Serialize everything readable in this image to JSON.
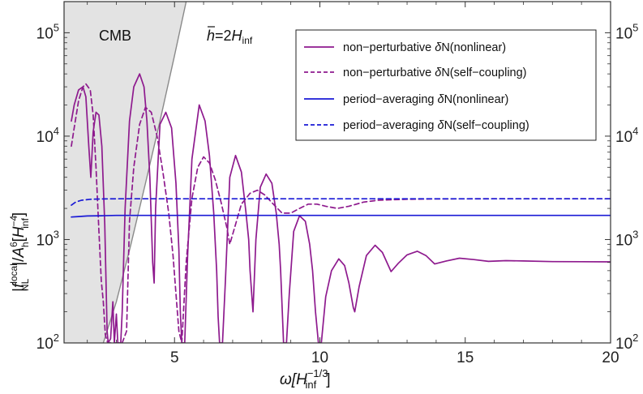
{
  "chart_data": {
    "type": "line",
    "title": "",
    "xlabel": "ω[H_inf^(-1/3)]",
    "ylabel": "|f_NL^local|/A_h^6[H_inf^(-4)]",
    "xlabel_parts": {
      "sym": "ω[",
      "base": "H",
      "base_sub": "inf",
      "sup": "−1/3",
      "close": "]"
    },
    "ylabel_parts": {
      "pre": "|",
      "f": "f",
      "f_sup": "local",
      "f_sub": "NL",
      "mid": "|/",
      "A": "A",
      "A_sup": "6",
      "A_sub": "h",
      "open": "[",
      "H": "H",
      "H_sup": "−4",
      "H_sub": "inf",
      "close": "]"
    },
    "xlim": [
      1.2,
      20
    ],
    "ylim": [
      100,
      200000
    ],
    "yscale": "log",
    "xticks": [
      5,
      10,
      15,
      20
    ],
    "xtick_labels": [
      "5",
      "10",
      "15",
      "20"
    ],
    "yticks": [
      100,
      1000,
      10000,
      100000
    ],
    "ytick_labels": [
      {
        "base": "10",
        "exp": "2"
      },
      {
        "base": "10",
        "exp": "3"
      },
      {
        "base": "10",
        "exp": "4"
      },
      {
        "base": "10",
        "exp": "5"
      }
    ],
    "grid": false,
    "legend_position": "top-right",
    "annotations": {
      "region_label": "CMB",
      "hbar": {
        "sym": "h",
        "eq": "=2",
        "H": "H",
        "sub": "inf"
      }
    },
    "cmb_region": {
      "boundary": [
        [
          1.2,
          100
        ],
        [
          2.55,
          100
        ],
        [
          3.0,
          250
        ],
        [
          3.5,
          900
        ],
        [
          4.0,
          3500
        ],
        [
          4.5,
          14000
        ],
        [
          5.0,
          60000
        ],
        [
          5.4,
          200000
        ],
        [
          1.2,
          200000
        ]
      ]
    },
    "series": [
      {
        "name": "non−perturbative δN(nonlinear)",
        "name_parts": {
          "pre": "non−perturbative ",
          "delta": "δ",
          "post": "N(nonlinear)"
        },
        "style": "solid",
        "color": "#8e1a8e",
        "points": [
          [
            1.45,
            14000
          ],
          [
            1.55,
            20000
          ],
          [
            1.7,
            28000
          ],
          [
            1.85,
            30000
          ],
          [
            1.95,
            24000
          ],
          [
            2.05,
            8000
          ],
          [
            2.12,
            4000
          ],
          [
            2.2,
            11000
          ],
          [
            2.3,
            17000
          ],
          [
            2.4,
            16000
          ],
          [
            2.5,
            8000
          ],
          [
            2.6,
            1400
          ],
          [
            2.68,
            130
          ],
          [
            2.72,
            100
          ],
          [
            2.8,
            110
          ],
          [
            2.88,
            250
          ],
          [
            2.93,
            100
          ],
          [
            3.0,
            190
          ],
          [
            3.05,
            100
          ],
          [
            3.15,
            100
          ],
          [
            3.2,
            200
          ],
          [
            3.3,
            2000
          ],
          [
            3.45,
            14000
          ],
          [
            3.6,
            30000
          ],
          [
            3.8,
            40000
          ],
          [
            3.95,
            30000
          ],
          [
            4.05,
            14000
          ],
          [
            4.15,
            4000
          ],
          [
            4.25,
            600
          ],
          [
            4.3,
            380
          ],
          [
            4.35,
            2000
          ],
          [
            4.5,
            13000
          ],
          [
            4.7,
            17000
          ],
          [
            4.9,
            12000
          ],
          [
            5.05,
            3500
          ],
          [
            5.15,
            800
          ],
          [
            5.2,
            200
          ],
          [
            5.25,
            100
          ],
          [
            5.35,
            100
          ],
          [
            5.45,
            700
          ],
          [
            5.6,
            6000
          ],
          [
            5.85,
            20000
          ],
          [
            6.05,
            14000
          ],
          [
            6.2,
            6500
          ],
          [
            6.35,
            1800
          ],
          [
            6.45,
            500
          ],
          [
            6.5,
            180
          ],
          [
            6.55,
            100
          ],
          [
            6.65,
            100
          ],
          [
            6.75,
            400
          ],
          [
            6.9,
            4000
          ],
          [
            7.1,
            6500
          ],
          [
            7.3,
            4500
          ],
          [
            7.45,
            1900
          ],
          [
            7.55,
            1000
          ],
          [
            7.6,
            500
          ],
          [
            7.7,
            200
          ],
          [
            7.8,
            1000
          ],
          [
            7.95,
            3200
          ],
          [
            8.15,
            4300
          ],
          [
            8.35,
            3500
          ],
          [
            8.5,
            1800
          ],
          [
            8.6,
            900
          ],
          [
            8.65,
            500
          ],
          [
            8.75,
            100
          ],
          [
            8.85,
            100
          ],
          [
            8.95,
            300
          ],
          [
            9.1,
            1200
          ],
          [
            9.3,
            1700
          ],
          [
            9.5,
            1500
          ],
          [
            9.65,
            900
          ],
          [
            9.75,
            500
          ],
          [
            9.85,
            200
          ],
          [
            9.95,
            100
          ],
          [
            10.05,
            100
          ],
          [
            10.2,
            280
          ],
          [
            10.4,
            500
          ],
          [
            10.65,
            650
          ],
          [
            10.85,
            560
          ],
          [
            11.0,
            380
          ],
          [
            11.15,
            220
          ],
          [
            11.2,
            200
          ],
          [
            11.35,
            350
          ],
          [
            11.6,
            700
          ],
          [
            11.9,
            880
          ],
          [
            12.15,
            750
          ],
          [
            12.45,
            490
          ],
          [
            12.7,
            590
          ],
          [
            13.0,
            710
          ],
          [
            13.35,
            770
          ],
          [
            13.65,
            700
          ],
          [
            13.95,
            580
          ],
          [
            14.35,
            620
          ],
          [
            14.8,
            660
          ],
          [
            15.3,
            640
          ],
          [
            15.8,
            615
          ],
          [
            16.4,
            625
          ],
          [
            17.0,
            620
          ],
          [
            18.0,
            612
          ],
          [
            19.0,
            610
          ],
          [
            20.0,
            608
          ]
        ]
      },
      {
        "name": "non−perturbative δN(self−coupling)",
        "name_parts": {
          "pre": "non−perturbative ",
          "delta": "δ",
          "post": "N(self−coupling)"
        },
        "style": "dashed",
        "color": "#8e1a8e",
        "points": [
          [
            1.45,
            8000
          ],
          [
            1.55,
            12000
          ],
          [
            1.7,
            22000
          ],
          [
            1.85,
            30000
          ],
          [
            1.95,
            32000
          ],
          [
            2.1,
            28000
          ],
          [
            2.2,
            16000
          ],
          [
            2.3,
            5000
          ],
          [
            2.4,
            1200
          ],
          [
            2.48,
            400
          ],
          [
            2.55,
            250
          ],
          [
            2.62,
            120
          ],
          [
            2.7,
            100
          ],
          [
            2.8,
            100
          ],
          [
            2.95,
            100
          ],
          [
            3.05,
            100
          ],
          [
            3.2,
            100
          ],
          [
            3.35,
            130
          ],
          [
            3.45,
            1500
          ],
          [
            3.6,
            5000
          ],
          [
            3.8,
            13000
          ],
          [
            4.0,
            19000
          ],
          [
            4.2,
            17000
          ],
          [
            4.4,
            10000
          ],
          [
            4.6,
            4500
          ],
          [
            4.8,
            1800
          ],
          [
            4.95,
            700
          ],
          [
            5.05,
            300
          ],
          [
            5.15,
            130
          ],
          [
            5.25,
            100
          ],
          [
            5.4,
            600
          ],
          [
            5.6,
            2500
          ],
          [
            5.8,
            5000
          ],
          [
            6.0,
            6300
          ],
          [
            6.2,
            5500
          ],
          [
            6.4,
            3800
          ],
          [
            6.6,
            2300
          ],
          [
            6.8,
            1300
          ],
          [
            6.9,
            900
          ],
          [
            7.1,
            1400
          ],
          [
            7.3,
            2200
          ],
          [
            7.6,
            2800
          ],
          [
            7.85,
            3000
          ],
          [
            8.1,
            2700
          ],
          [
            8.4,
            2200
          ],
          [
            8.7,
            1800
          ],
          [
            9.0,
            1800
          ],
          [
            9.3,
            2000
          ],
          [
            9.6,
            2200
          ],
          [
            9.9,
            2200
          ],
          [
            10.2,
            2100
          ],
          [
            10.6,
            2000
          ],
          [
            11.0,
            2100
          ],
          [
            11.5,
            2300
          ],
          [
            12.0,
            2400
          ],
          [
            13.0,
            2450
          ],
          [
            14.0,
            2470
          ],
          [
            16.0,
            2480
          ],
          [
            18.0,
            2480
          ],
          [
            20.0,
            2480
          ]
        ]
      },
      {
        "name": "period−averaging δN(nonlinear)",
        "name_parts": {
          "pre": "period−averaging ",
          "delta": "δ",
          "post": "N(nonlinear)"
        },
        "style": "solid",
        "color": "#1a1ad6",
        "points": [
          [
            1.45,
            1650
          ],
          [
            1.7,
            1670
          ],
          [
            2.0,
            1690
          ],
          [
            2.5,
            1700
          ],
          [
            3.0,
            1710
          ],
          [
            4.0,
            1710
          ],
          [
            6.0,
            1710
          ],
          [
            10.0,
            1710
          ],
          [
            15.0,
            1710
          ],
          [
            20.0,
            1710
          ]
        ]
      },
      {
        "name": "period−averaging δN(self−coupling)",
        "name_parts": {
          "pre": "period−averaging ",
          "delta": "δ",
          "post": "N(self−coupling)"
        },
        "style": "dashed",
        "color": "#1a1ad6",
        "points": [
          [
            1.45,
            2150
          ],
          [
            1.6,
            2300
          ],
          [
            1.8,
            2400
          ],
          [
            2.1,
            2450
          ],
          [
            2.5,
            2470
          ],
          [
            3.0,
            2480
          ],
          [
            4.0,
            2480
          ],
          [
            6.0,
            2480
          ],
          [
            10.0,
            2480
          ],
          [
            15.0,
            2480
          ],
          [
            20.0,
            2480
          ]
        ]
      }
    ]
  }
}
